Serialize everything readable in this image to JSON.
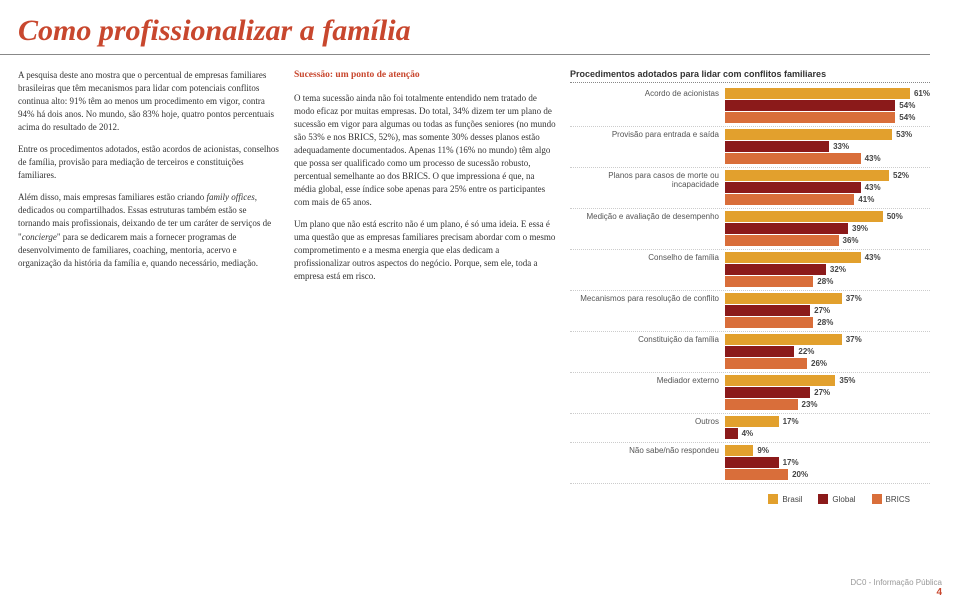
{
  "title": "Como profissionalizar a família",
  "col_left": {
    "p1": "A pesquisa deste ano mostra que o percentual de empresas familiares brasileiras que têm mecanismos para lidar com potenciais conflitos continua alto: 91% têm ao menos um procedimento em vigor, contra 94% há dois anos. No mundo, são 83% hoje, quatro pontos percentuais acima do resultado de 2012.",
    "p2": "Entre os procedimentos adotados, estão acordos de acionistas, conselhos de família, provisão para mediação de terceiros e constituições familiares.",
    "p3_a": "Além disso, mais empresas familiares estão criando ",
    "p3_em": "family offices",
    "p3_b": ", dedicados ou compartilhados. Essas estruturas também estão se tornando mais profissionais, deixando de ter um caráter de serviços de \"",
    "p3_em2": "concierge",
    "p3_c": "\" para se dedicarem mais a fornecer programas de desenvolvimento de familiares, coaching, mentoria, acervo e organização da história da família e, quando necessário, mediação."
  },
  "col_mid": {
    "subhead": "Sucessão: um ponto de atenção",
    "p1": "O tema sucessão ainda não foi totalmente entendido nem tratado de modo eficaz por muitas empresas. Do total, 34% dizem ter um plano de sucessão em vigor para algumas ou todas as funções seniores (no mundo são 53% e nos BRICS, 52%), mas somente 30% desses planos estão adequadamente documentados. Apenas 11% (16% no mundo) têm algo que possa ser qualificado como um processo de sucessão robusto, percentual semelhante ao dos BRICS. O que impressiona é que, na média global, esse índice sobe apenas para 25% entre os participantes com mais de 65 anos.",
    "p2": "Um plano que não está escrito não é um plano, é só uma ideia. E essa é uma questão que as empresas familiares precisam abordar com o mesmo comprometimento e a mesma energia que elas dedicam a profissionalizar outros aspectos do negócio. Porque, sem ele, toda a empresa está em risco."
  },
  "chart": {
    "title": "Procedimentos adotados para lidar com conflitos familiares",
    "type": "bar",
    "colors": {
      "brasil": "#e2a02d",
      "global": "#8b1a1a",
      "brics": "#d96e3a"
    },
    "max": 65,
    "categories": [
      {
        "label": "Acordo de acionistas",
        "brasil": 61,
        "global": 54,
        "brics": 54
      },
      {
        "label": "Provisão para entrada e saída",
        "brasil": 53,
        "global": 33,
        "brics": 43
      },
      {
        "label": "Planos para casos de morte ou incapacidade",
        "brasil": 52,
        "global": 43,
        "brics": 41
      },
      {
        "label": "Medição e avaliação de desempenho",
        "brasil": 50,
        "global": 39,
        "brics": 36
      },
      {
        "label": "Conselho de família",
        "brasil": 43,
        "global": 32,
        "brics": 28
      },
      {
        "label": "Mecanismos para resolução de conflito",
        "brasil": 37,
        "global": 27,
        "brics": 28
      },
      {
        "label": "Constituição da família",
        "brasil": 37,
        "global": 22,
        "brics": 26
      },
      {
        "label": "Mediador externo",
        "brasil": 35,
        "global": 27,
        "brics": 23
      },
      {
        "label": "Outros",
        "brasil": 17,
        "global": 4,
        "brics": null
      },
      {
        "label": "Não sabe/não respondeu",
        "brasil": 9,
        "global": 17,
        "brics": 20
      }
    ],
    "legend": [
      {
        "label": "Brasil",
        "key": "brasil"
      },
      {
        "label": "Global",
        "key": "global"
      },
      {
        "label": "BRICS",
        "key": "brics"
      }
    ]
  },
  "footer": {
    "tag": "DC0 - Informação Pública",
    "page": "4"
  }
}
